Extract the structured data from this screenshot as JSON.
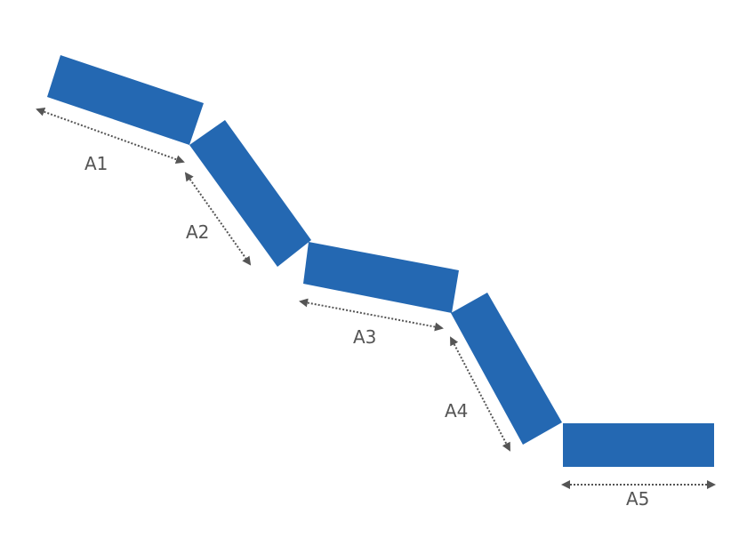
{
  "colors": {
    "segment": "#2468b2",
    "dimension": "#555555"
  },
  "labels": [
    "A1",
    "A2",
    "A3",
    "A4",
    "A5"
  ]
}
